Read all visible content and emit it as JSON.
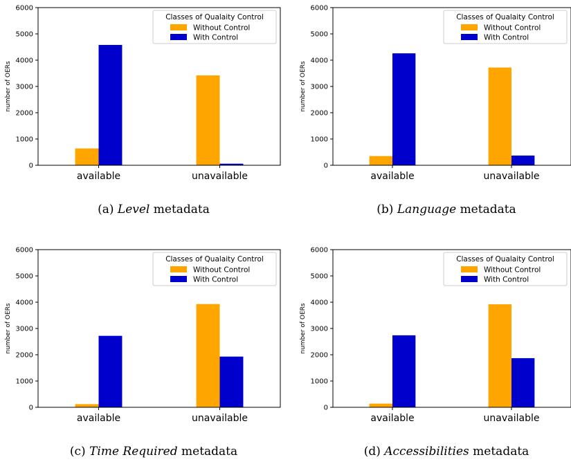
{
  "colors": {
    "without": "#ffa500",
    "with": "#0000cd",
    "axis": "#000000"
  },
  "legend": {
    "title": "Classes of Qualaity Control"
  },
  "chart_data": [
    {
      "type": "bar",
      "categories": [
        "available",
        "unavailable"
      ],
      "series": [
        {
          "name": "Without Control",
          "values": [
            640,
            3420
          ]
        },
        {
          "name": "With Control",
          "values": [
            4580,
            60
          ]
        }
      ],
      "ylabel": "number of OERs",
      "ylim": [
        0,
        6000
      ],
      "yticks": [
        "0",
        "1000",
        "2000",
        "3000",
        "4000",
        "5000",
        "6000"
      ],
      "legend_position": "top-right",
      "caption": {
        "label": "(a)",
        "emph": "Level",
        "rest": "metadata"
      }
    },
    {
      "type": "bar",
      "categories": [
        "available",
        "unavailable"
      ],
      "series": [
        {
          "name": "Without Control",
          "values": [
            350,
            3720
          ]
        },
        {
          "name": "With Control",
          "values": [
            4260,
            370
          ]
        }
      ],
      "ylabel": "number of OERs",
      "ylim": [
        0,
        6000
      ],
      "yticks": [
        "0",
        "1000",
        "2000",
        "3000",
        "4000",
        "5000",
        "6000"
      ],
      "legend_position": "top-right",
      "caption": {
        "label": "(b)",
        "emph": "Language",
        "rest": "metadata"
      }
    },
    {
      "type": "bar",
      "categories": [
        "available",
        "unavailable"
      ],
      "series": [
        {
          "name": "Without Control",
          "values": [
            120,
            3930
          ]
        },
        {
          "name": "With Control",
          "values": [
            2720,
            1930
          ]
        }
      ],
      "ylabel": "number of OERs",
      "ylim": [
        0,
        6000
      ],
      "yticks": [
        "0",
        "1000",
        "2000",
        "3000",
        "4000",
        "5000",
        "6000"
      ],
      "legend_position": "top-right",
      "caption": {
        "label": "(c)",
        "emph": "Time Required",
        "rest": "metadata"
      }
    },
    {
      "type": "bar",
      "categories": [
        "available",
        "unavailable"
      ],
      "series": [
        {
          "name": "Without Control",
          "values": [
            140,
            3920
          ]
        },
        {
          "name": "With Control",
          "values": [
            2740,
            1870
          ]
        }
      ],
      "ylabel": "number of OERs",
      "ylim": [
        0,
        6000
      ],
      "yticks": [
        "0",
        "1000",
        "2000",
        "3000",
        "4000",
        "5000",
        "6000"
      ],
      "legend_position": "top-right",
      "caption": {
        "label": "(d)",
        "emph": "Accessibilities",
        "rest": "metadata"
      }
    }
  ]
}
